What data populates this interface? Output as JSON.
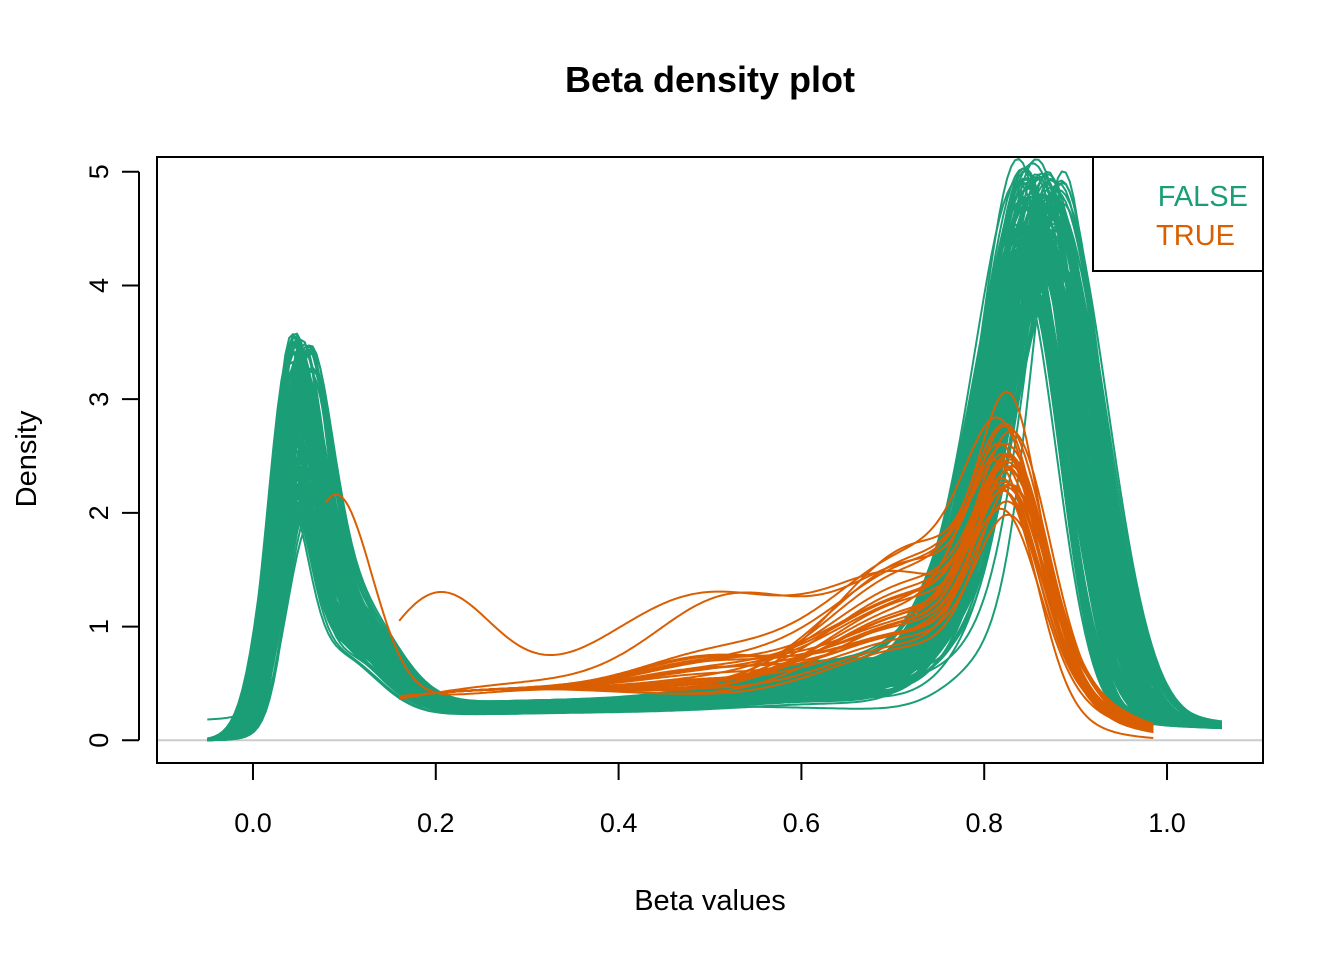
{
  "chart_data": {
    "type": "line",
    "title": "Beta density plot",
    "xlabel": "Beta values",
    "ylabel": "Density",
    "xlim": [
      -0.105,
      1.105
    ],
    "ylim": [
      -0.2,
      5.13
    ],
    "x_ticks": [
      0.0,
      0.2,
      0.4,
      0.6,
      0.8,
      1.0
    ],
    "x_tick_labels": [
      "0.0",
      "0.2",
      "0.4",
      "0.6",
      "0.8",
      "1.0"
    ],
    "y_ticks": [
      0,
      1,
      2,
      3,
      4,
      5
    ],
    "y_tick_labels": [
      "0",
      "1",
      "2",
      "3",
      "4",
      "5"
    ],
    "zero_line_color": "#cccccc",
    "grid": false,
    "legend": {
      "position": "top-right",
      "entries": [
        {
          "label": "FALSE",
          "color": "#1b9e77"
        },
        {
          "label": "TRUE",
          "color": "#d95f02"
        }
      ]
    },
    "groups": [
      {
        "name": "FALSE",
        "color": "#1b9e77",
        "representative_curve": {
          "x": [
            -0.05,
            0.0,
            0.02,
            0.04,
            0.055,
            0.07,
            0.09,
            0.12,
            0.15,
            0.2,
            0.25,
            0.3,
            0.35,
            0.4,
            0.45,
            0.5,
            0.55,
            0.6,
            0.65,
            0.7,
            0.75,
            0.8,
            0.83,
            0.86,
            0.875,
            0.89,
            0.91,
            0.93,
            0.96,
            1.0,
            1.06
          ],
          "y": [
            0.0,
            0.15,
            0.9,
            2.1,
            2.6,
            2.4,
            1.7,
            1.0,
            0.65,
            0.45,
            0.38,
            0.33,
            0.31,
            0.3,
            0.3,
            0.31,
            0.33,
            0.37,
            0.45,
            0.6,
            0.9,
            1.9,
            3.3,
            4.2,
            4.35,
            4.1,
            3.0,
            1.6,
            0.45,
            0.05,
            0.0
          ]
        },
        "peaks": {
          "low_peak_x": 0.055,
          "low_peak_y_range": [
            1.4,
            2.85
          ],
          "high_peak_x": 0.875,
          "high_peak_y_range": [
            3.5,
            4.92
          ]
        }
      },
      {
        "name": "TRUE",
        "color": "#d95f02",
        "representative_curve": {
          "x": [
            0.08,
            0.12,
            0.15,
            0.2,
            0.25,
            0.3,
            0.35,
            0.4,
            0.45,
            0.5,
            0.55,
            0.6,
            0.65,
            0.7,
            0.75,
            0.8,
            0.82,
            0.84,
            0.86,
            0.88,
            0.9,
            0.92,
            0.95,
            0.98
          ],
          "y": [
            2.0,
            1.2,
            0.8,
            0.6,
            0.48,
            0.42,
            0.44,
            0.5,
            0.58,
            0.7,
            0.85,
            1.1,
            1.45,
            1.85,
            2.25,
            2.3,
            2.2,
            1.8,
            1.3,
            0.85,
            0.5,
            0.28,
            0.1,
            0.02
          ]
        },
        "peaks": {
          "high_peak_x": 0.825,
          "high_peak_y_range": [
            1.9,
            2.6
          ]
        }
      }
    ]
  }
}
